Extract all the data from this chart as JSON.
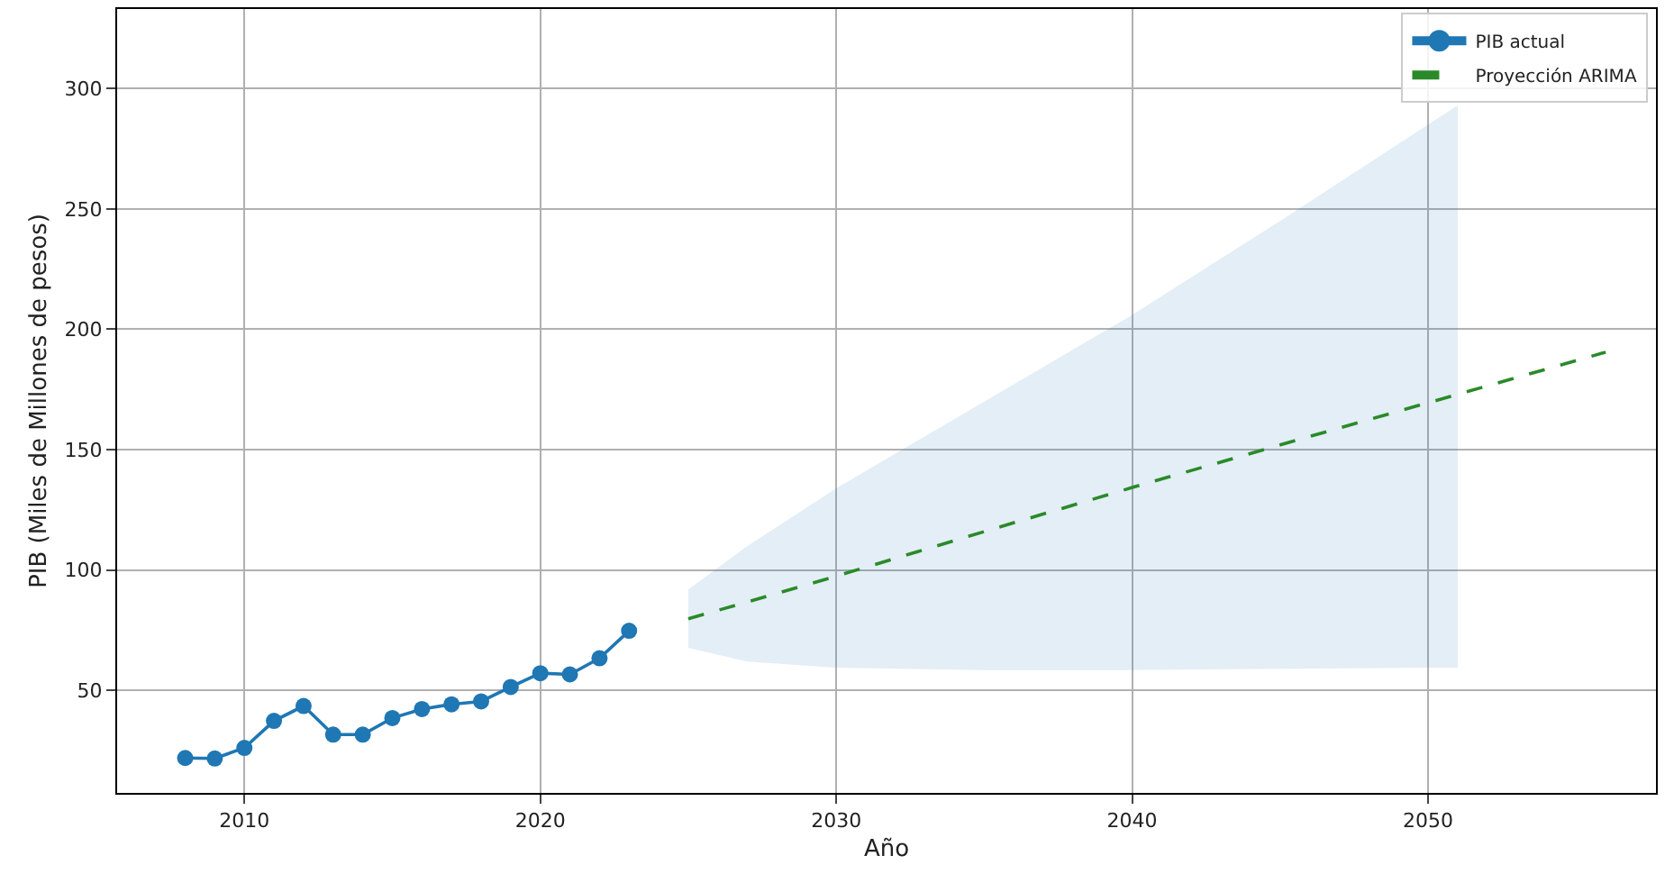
{
  "chart_data": {
    "type": "line",
    "xlabel": "Año",
    "ylabel": "PIB (Miles de Millones de pesos)",
    "xlim": [
      2005.7,
      2057.7
    ],
    "xticks": [
      2010,
      2020,
      2030,
      2040,
      2050
    ],
    "ylim": [
      7.5,
      333
    ],
    "yticks": [
      50,
      100,
      150,
      200,
      250,
      300
    ],
    "grid": true,
    "legend": "top right",
    "series": [
      {
        "name": "PIB actual",
        "color": "#1f77b4",
        "marker": "circle",
        "line_style": "solid",
        "x": [
          2008,
          2009,
          2010,
          2011,
          2012,
          2013,
          2014,
          2015,
          2016,
          2017,
          2018,
          2019,
          2020,
          2021,
          2022,
          2023
        ],
        "values": [
          22.0,
          21.8,
          26.2,
          37.4,
          43.6,
          31.7,
          31.7,
          38.6,
          42.3,
          44.3,
          45.5,
          51.5,
          57.2,
          56.7,
          63.4,
          74.8
        ]
      },
      {
        "name": "Proyección ARIMA",
        "color": "#2a8a2a",
        "marker": "none",
        "line_style": "dashed",
        "x": [
          2025,
          2027,
          2030,
          2035,
          2040,
          2045,
          2050,
          2051,
          2056
        ],
        "values": [
          79.8,
          86.8,
          97.5,
          116,
          134.3,
          152,
          169.5,
          173,
          190.5
        ],
        "lower": [
          67.7,
          62,
          59.5,
          58.5,
          58.5,
          59,
          59.5,
          59.5,
          null
        ],
        "upper": [
          92,
          110,
          134,
          170,
          206,
          245,
          285,
          293,
          null
        ]
      }
    ]
  }
}
